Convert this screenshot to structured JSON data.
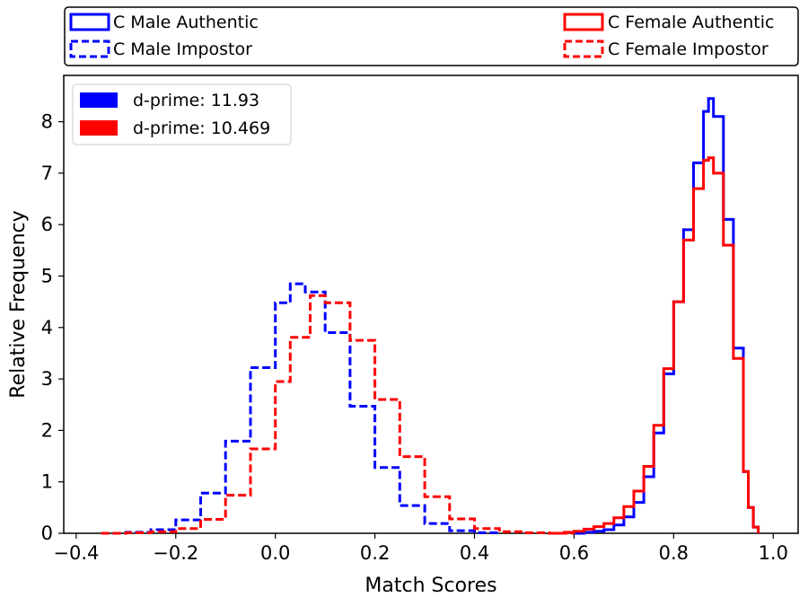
{
  "chart_data": {
    "type": "line",
    "title": "",
    "xlabel": "Match Scores",
    "ylabel": "Relative Frequency",
    "xlim": [
      -0.425,
      1.05
    ],
    "ylim": [
      0,
      8.9
    ],
    "x_ticks": [
      -0.4,
      -0.2,
      0.0,
      0.2,
      0.4,
      0.6,
      0.8,
      1.0
    ],
    "x_tick_labels": [
      "−0.4",
      "−0.2",
      "0.0",
      "0.2",
      "0.4",
      "0.6",
      "0.8",
      "1.0"
    ],
    "y_ticks": [
      0,
      1,
      2,
      3,
      4,
      5,
      6,
      7,
      8
    ],
    "y_tick_labels": [
      "0",
      "1",
      "2",
      "3",
      "4",
      "5",
      "6",
      "7",
      "8"
    ],
    "grid": false,
    "series": [
      {
        "name": "C Male Authentic",
        "color": "#0000ff",
        "style": "solid",
        "x": [
          0.6,
          0.62,
          0.64,
          0.66,
          0.68,
          0.7,
          0.72,
          0.74,
          0.76,
          0.78,
          0.8,
          0.82,
          0.84,
          0.86,
          0.87,
          0.88,
          0.9,
          0.92,
          0.94,
          0.95,
          0.96,
          0.97
        ],
        "y": [
          0.0,
          0.02,
          0.04,
          0.07,
          0.16,
          0.32,
          0.6,
          1.1,
          1.95,
          3.1,
          4.5,
          5.9,
          7.2,
          8.2,
          8.45,
          8.1,
          6.1,
          3.6,
          1.2,
          0.5,
          0.12,
          0.0
        ]
      },
      {
        "name": "C Female Authentic",
        "color": "#ff0000",
        "style": "solid",
        "x": [
          0.56,
          0.58,
          0.6,
          0.62,
          0.64,
          0.66,
          0.68,
          0.7,
          0.72,
          0.74,
          0.76,
          0.78,
          0.8,
          0.82,
          0.84,
          0.86,
          0.87,
          0.88,
          0.9,
          0.92,
          0.94,
          0.95,
          0.96,
          0.97
        ],
        "y": [
          0.0,
          0.02,
          0.04,
          0.08,
          0.13,
          0.19,
          0.3,
          0.52,
          0.82,
          1.3,
          2.1,
          3.2,
          4.5,
          5.7,
          6.7,
          7.25,
          7.3,
          7.0,
          5.6,
          3.4,
          1.2,
          0.5,
          0.12,
          0.0
        ]
      },
      {
        "name": "C Male Impostor",
        "color": "#0000ff",
        "style": "dashed",
        "x": [
          -0.35,
          -0.3,
          -0.25,
          -0.2,
          -0.15,
          -0.1,
          -0.05,
          0.0,
          0.03,
          0.06,
          0.1,
          0.15,
          0.2,
          0.25,
          0.3,
          0.35,
          0.4,
          0.45
        ],
        "y": [
          0.0,
          0.02,
          0.07,
          0.26,
          0.78,
          1.79,
          3.22,
          4.48,
          4.85,
          4.69,
          3.9,
          2.47,
          1.28,
          0.54,
          0.19,
          0.05,
          0.01,
          0.0
        ]
      },
      {
        "name": "C Female Impostor",
        "color": "#ff0000",
        "style": "dashed",
        "x": [
          -0.35,
          -0.3,
          -0.25,
          -0.2,
          -0.15,
          -0.1,
          -0.05,
          0.0,
          0.03,
          0.07,
          0.1,
          0.15,
          0.2,
          0.25,
          0.3,
          0.35,
          0.4,
          0.45,
          0.5,
          0.55,
          0.6
        ],
        "y": [
          0.0,
          0.01,
          0.03,
          0.09,
          0.27,
          0.74,
          1.64,
          2.95,
          3.81,
          4.62,
          4.48,
          3.75,
          2.6,
          1.49,
          0.71,
          0.28,
          0.09,
          0.03,
          0.01,
          0.0,
          0.0
        ]
      }
    ],
    "legend_top": {
      "placement": "above-plot",
      "entries": [
        {
          "label": "C Male Authentic",
          "color": "#0000ff",
          "style": "solid"
        },
        {
          "label": "C Male Impostor",
          "color": "#0000ff",
          "style": "dashed"
        },
        {
          "label": "C Female Authentic",
          "color": "#ff0000",
          "style": "solid"
        },
        {
          "label": "C Female Impostor",
          "color": "#ff0000",
          "style": "dashed"
        }
      ]
    },
    "legend_inner": {
      "placement": "top-left",
      "entries": [
        {
          "label": "d-prime: 11.93",
          "color": "#0000ff"
        },
        {
          "label": "d-prime: 10.469",
          "color": "#ff0000"
        }
      ]
    }
  }
}
